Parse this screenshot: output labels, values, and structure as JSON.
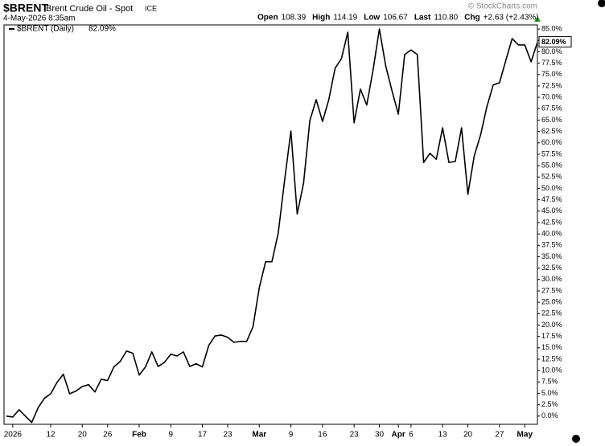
{
  "header": {
    "symbol": "$BRENT",
    "name": "Brent Crude Oil - Spot",
    "exchange": "ICE",
    "timestamp": "4-May-2026 8:35am",
    "copyright": "© StockCharts.com",
    "quote": [
      {
        "label": "Open",
        "value": "108.39"
      },
      {
        "label": "High",
        "value": "114.19"
      },
      {
        "label": "Low",
        "value": "106.67"
      },
      {
        "label": "Last",
        "value": "110.80"
      },
      {
        "label": "Chg",
        "value": "+2.63 (+2.43%)"
      }
    ]
  },
  "chart_data": {
    "type": "line",
    "categories": [
      null,
      "2026",
      null,
      null,
      null,
      null,
      null,
      "12",
      null,
      null,
      null,
      null,
      "20",
      null,
      null,
      null,
      "26",
      null,
      null,
      null,
      null,
      "Feb",
      null,
      null,
      null,
      null,
      "9",
      null,
      null,
      null,
      null,
      "17",
      null,
      null,
      null,
      "23",
      null,
      null,
      null,
      null,
      "Mar",
      null,
      null,
      null,
      null,
      "9",
      null,
      null,
      null,
      null,
      "16",
      null,
      null,
      null,
      null,
      "23",
      null,
      null,
      null,
      "30",
      null,
      null,
      "Apr",
      null,
      "6",
      null,
      null,
      null,
      null,
      "13",
      null,
      null,
      null,
      "20",
      null,
      null,
      null,
      null,
      "27",
      null,
      null,
      null,
      "May",
      null,
      null
    ],
    "series": [
      {
        "name": "$BRENT (Daily)",
        "color": "#000000",
        "values": [
          0,
          -0.2,
          1.4,
          0,
          -1.4,
          1.8,
          3.9,
          4.9,
          7.4,
          9.2,
          4.9,
          5.5,
          6.5,
          6.9,
          5.3,
          8.1,
          7.8,
          10.8,
          12.0,
          14.3,
          13.8,
          9.0,
          10.8,
          14.1,
          10.9,
          11.8,
          13.6,
          13.2,
          14.1,
          10.9,
          11.5,
          10.8,
          15.5,
          17.6,
          17.8,
          17.3,
          16.2,
          16.4,
          16.4,
          19.6,
          28.2,
          33.9,
          33.9,
          40.2,
          51.7,
          62.6,
          44.4,
          51.1,
          64.9,
          69.5,
          64.7,
          69.5,
          76.4,
          78.5,
          84.3,
          64.4,
          71.8,
          68.3,
          76.0,
          85.0,
          76.9,
          71.4,
          66.3,
          79.4,
          80.4,
          79.4,
          55.7,
          57.7,
          56.4,
          63.3,
          55.7,
          55.9,
          63.3,
          48.7,
          57.1,
          61.7,
          67.9,
          72.7,
          73.2,
          78.1,
          82.9,
          81.5,
          81.5,
          77.8,
          82.09
        ],
        "value_labels": [
          null,
          null,
          null,
          null,
          null,
          null,
          null,
          null,
          null,
          null,
          null,
          null,
          null,
          null,
          null,
          null,
          null,
          null,
          null,
          null,
          null,
          null,
          null,
          null,
          null,
          null,
          null,
          null,
          null,
          null,
          null,
          null,
          null,
          null,
          null,
          null,
          null,
          null,
          null,
          null,
          null,
          null,
          null,
          null,
          null,
          null,
          null,
          null,
          null,
          null,
          null,
          null,
          null,
          null,
          null,
          null,
          null,
          null,
          null,
          null,
          null,
          null,
          null,
          null,
          null,
          null,
          null,
          null,
          null,
          null,
          null,
          null,
          null,
          null,
          null,
          null,
          null,
          null,
          null,
          null,
          null,
          null,
          null,
          null,
          "82.09%"
        ]
      }
    ],
    "ylim": [
      -1.8,
      85.9
    ],
    "yticks": [
      {
        "value": 0,
        "label": "0.0%"
      },
      {
        "value": 2.5,
        "label": "2.5%"
      },
      {
        "value": 5,
        "label": "5.0%"
      },
      {
        "value": 7.5,
        "label": "7.5%"
      },
      {
        "value": 10,
        "label": "10.0%"
      },
      {
        "value": 12.5,
        "label": "12.5%"
      },
      {
        "value": 15,
        "label": "15.0%"
      },
      {
        "value": 17.5,
        "label": "17.5%"
      },
      {
        "value": 20,
        "label": "20.0%"
      },
      {
        "value": 22.5,
        "label": "22.5%"
      },
      {
        "value": 25,
        "label": "25.0%"
      },
      {
        "value": 27.5,
        "label": "27.5%"
      },
      {
        "value": 30,
        "label": "30.0%"
      },
      {
        "value": 32.5,
        "label": "32.5%"
      },
      {
        "value": 35,
        "label": "35.0%"
      },
      {
        "value": 37.5,
        "label": "37.5%"
      },
      {
        "value": 40,
        "label": "40.0%"
      },
      {
        "value": 42.5,
        "label": "42.5%"
      },
      {
        "value": 45,
        "label": "45.0%"
      },
      {
        "value": 47.5,
        "label": "47.5%"
      },
      {
        "value": 50,
        "label": "50.0%"
      },
      {
        "value": 52.5,
        "label": "52.5%"
      },
      {
        "value": 55,
        "label": "55.0%"
      },
      {
        "value": 57.5,
        "label": "57.5%"
      },
      {
        "value": 60,
        "label": "60.0%"
      },
      {
        "value": 62.5,
        "label": "62.5%"
      },
      {
        "value": 65,
        "label": "65.0%"
      },
      {
        "value": 67.5,
        "label": "67.5%"
      },
      {
        "value": 70,
        "label": "70.0%"
      },
      {
        "value": 72.5,
        "label": "72.5%"
      },
      {
        "value": 75,
        "label": "75.0%"
      },
      {
        "value": 77.5,
        "label": "77.5%"
      },
      {
        "value": 80,
        "label": "80.0%"
      },
      {
        "value": 82.5,
        "label": "82.5%"
      },
      {
        "value": 85,
        "label": "85.0%"
      }
    ],
    "grid": false
  }
}
